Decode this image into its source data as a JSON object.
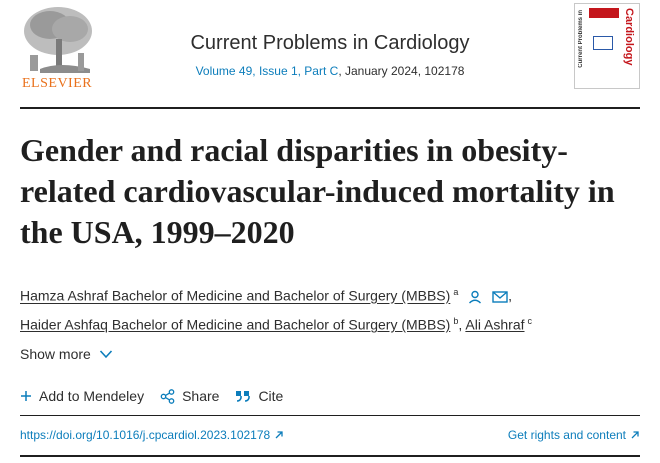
{
  "header": {
    "publisher": "ELSEVIER",
    "journal_title": "Current Problems in Cardiology",
    "issue_link": "Volume 49, Issue 1, Part C",
    "issue_rest": ", January 2024, 102178",
    "cover_brand": "Cardiology",
    "cover_side": "Current Problems in"
  },
  "article": {
    "title": "Gender and racial disparities in obesity-related cardiovascular-induced mortality in the USA, 1999–2020"
  },
  "authors": [
    {
      "name": "Hamza Ashraf Bachelor of Medicine and Bachelor of Surgery (MBBS)",
      "sup": "a",
      "sep": ","
    },
    {
      "name": "Haider Ashfaq Bachelor of Medicine and Bachelor of Surgery (MBBS)",
      "sup": "b",
      "sep": ","
    },
    {
      "name": "Ali Ashraf",
      "sup": "c",
      "sep": ""
    }
  ],
  "show_more": "Show more",
  "actions": {
    "mendeley": "Add to Mendeley",
    "share": "Share",
    "cite": "Cite"
  },
  "links": {
    "doi": "https://doi.org/10.1016/j.cpcardiol.2023.102178",
    "rights": "Get rights and content"
  },
  "colors": {
    "link": "#0c7dbb",
    "elsevier_orange": "#e9711c",
    "cover_red": "#c4161c"
  },
  "icons": [
    "tree-logo",
    "person-icon",
    "email-icon",
    "chevron-down-icon",
    "plus-icon",
    "share-icon",
    "quote-icon",
    "external-link-icon"
  ]
}
